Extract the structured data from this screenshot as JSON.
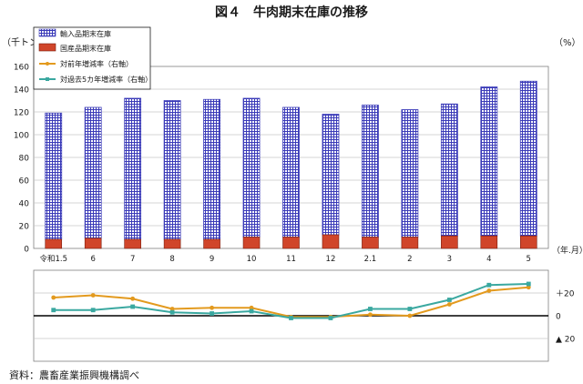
{
  "title": "図４　牛肉期末在庫の推移",
  "source": "資料：農畜産業振興機構調べ",
  "chart_data": {
    "type": "bar",
    "categories": [
      "令和1.5",
      "6",
      "7",
      "8",
      "9",
      "10",
      "11",
      "12",
      "2.1",
      "2",
      "3",
      "4",
      "5"
    ],
    "series": [
      {
        "name": "輸入品期末在庫",
        "values": [
          111,
          115,
          124,
          122,
          123,
          122,
          114,
          106,
          116,
          112,
          116,
          131,
          136
        ],
        "color": "#3a3ab8"
      },
      {
        "name": "国産品期末在庫",
        "values": [
          8,
          9,
          8,
          8,
          8,
          10,
          10,
          12,
          10,
          10,
          11,
          11,
          11
        ],
        "color": "#d0452a"
      },
      {
        "name": "対前年増減率（右軸）",
        "values": [
          16,
          18,
          15,
          6,
          7,
          7,
          -1,
          -1,
          1,
          0,
          10,
          22,
          25
        ],
        "color": "#e39a1e"
      },
      {
        "name": "対過去5カ年増減率（右軸）",
        "values": [
          5,
          5,
          8,
          3,
          2,
          4,
          -2,
          -2,
          6,
          6,
          14,
          27,
          28
        ],
        "color": "#3aa8a0"
      }
    ],
    "ylabel": "（千トン）",
    "ylim": [
      0,
      160
    ],
    "yticks": [
      "0",
      "20",
      "40",
      "60",
      "80",
      "100",
      "120",
      "140",
      "160"
    ],
    "xlabel": "（年.月）",
    "y2label": "（%）",
    "y2lim": [
      -40,
      40
    ],
    "y2ticks": [
      "＋20",
      "0",
      "▲ 20"
    ],
    "grid": true,
    "legend": "top-left"
  }
}
